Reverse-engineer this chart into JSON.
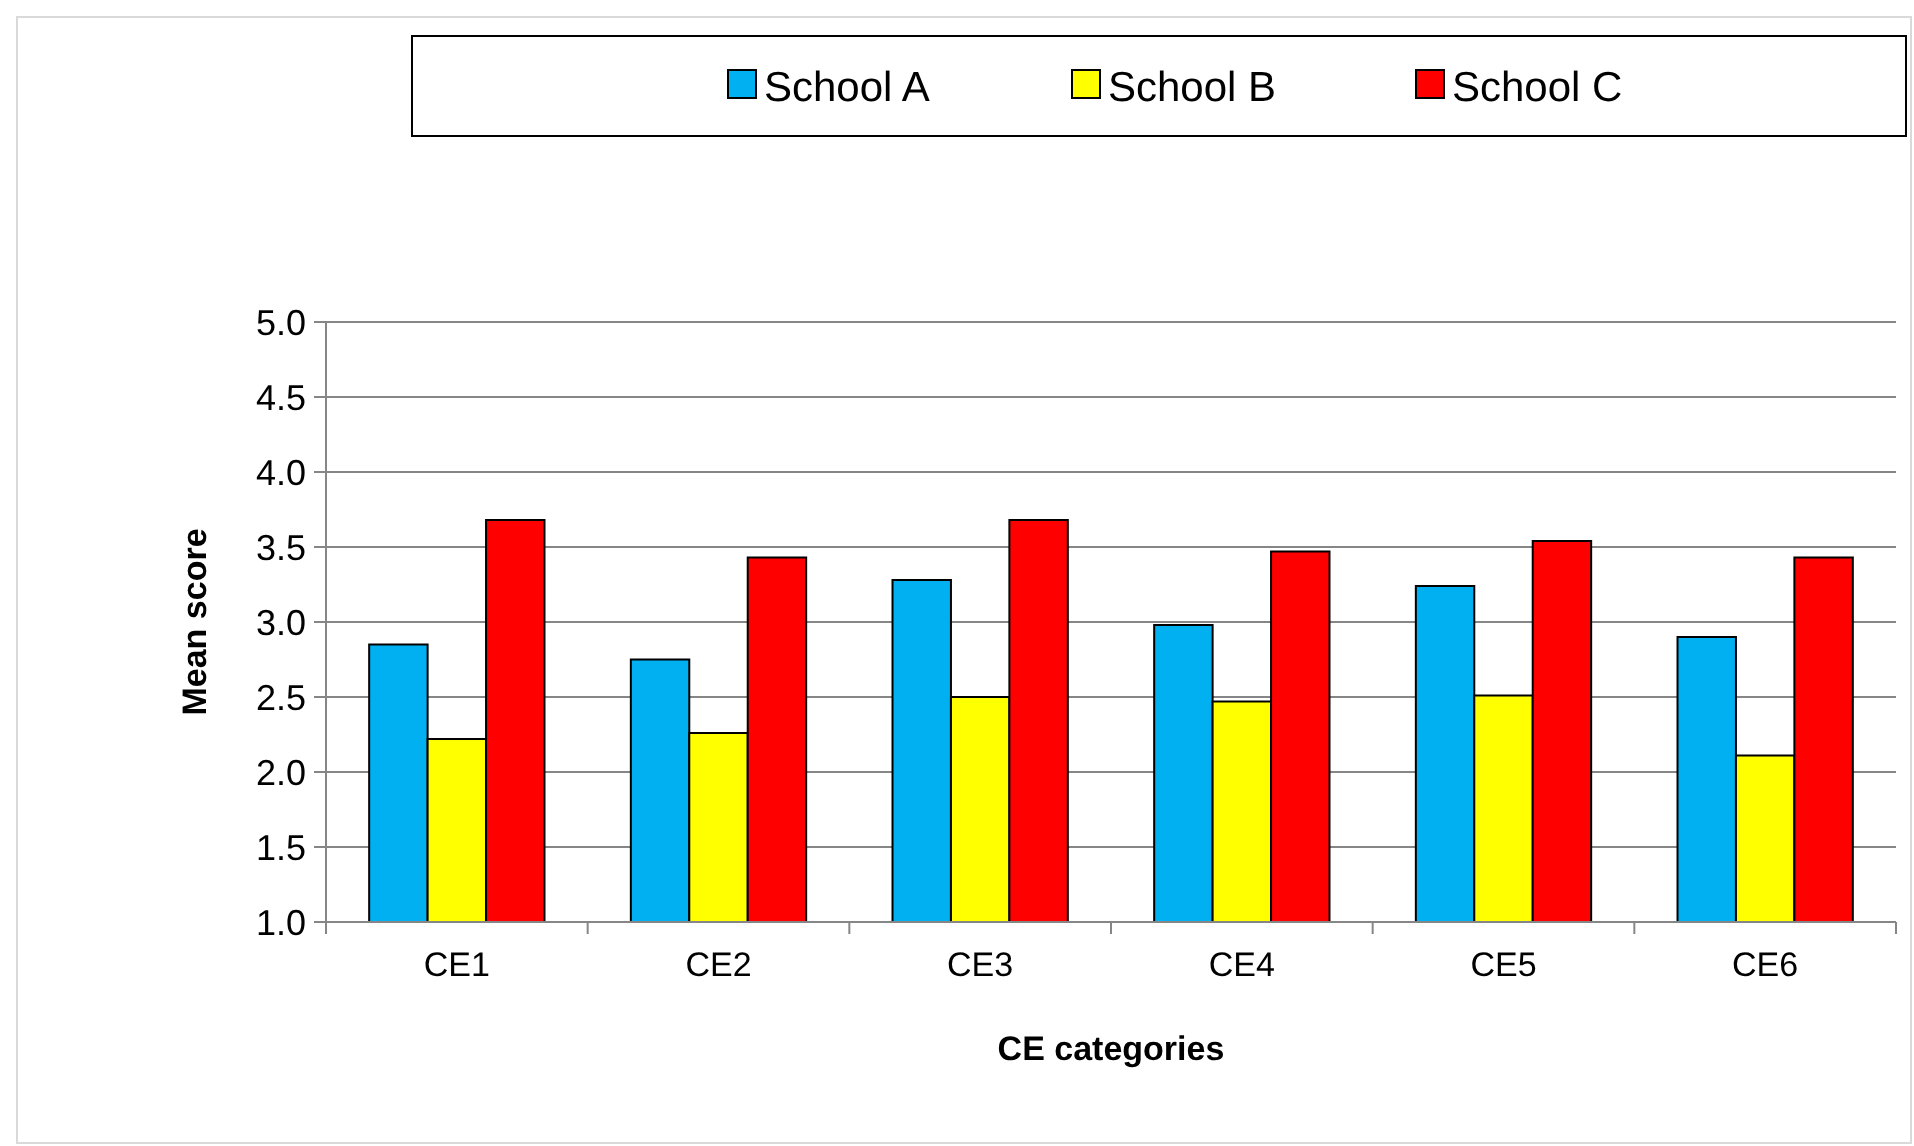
{
  "chart_data": {
    "type": "bar",
    "xlabel": "CE categories",
    "ylabel": "Mean score",
    "categories": [
      "CE1",
      "CE2",
      "CE3",
      "CE4",
      "CE5",
      "CE6"
    ],
    "series": [
      {
        "name": "School A",
        "color": "#00b0f0",
        "values": [
          2.85,
          2.75,
          3.28,
          2.98,
          3.24,
          2.9
        ]
      },
      {
        "name": "School B",
        "color": "#ffff00",
        "values": [
          2.22,
          2.26,
          2.5,
          2.47,
          2.51,
          2.11
        ]
      },
      {
        "name": "School C",
        "color": "#ff0000",
        "values": [
          3.68,
          3.43,
          3.68,
          3.47,
          3.54,
          3.43
        ]
      }
    ],
    "ylim": [
      1,
      5
    ],
    "yticks": [
      {
        "value": 1,
        "label": "1.0"
      },
      {
        "value": 1.5,
        "label": "1.5"
      },
      {
        "value": 2,
        "label": "2.0"
      },
      {
        "value": 2.5,
        "label": "2.5"
      },
      {
        "value": 3,
        "label": "3.0"
      },
      {
        "value": 3.5,
        "label": "3.5"
      },
      {
        "value": 4,
        "label": "4.0"
      },
      {
        "value": 4.5,
        "label": "4.5"
      },
      {
        "value": 5,
        "label": "5.0"
      }
    ],
    "grid": "y",
    "legend": "top"
  }
}
